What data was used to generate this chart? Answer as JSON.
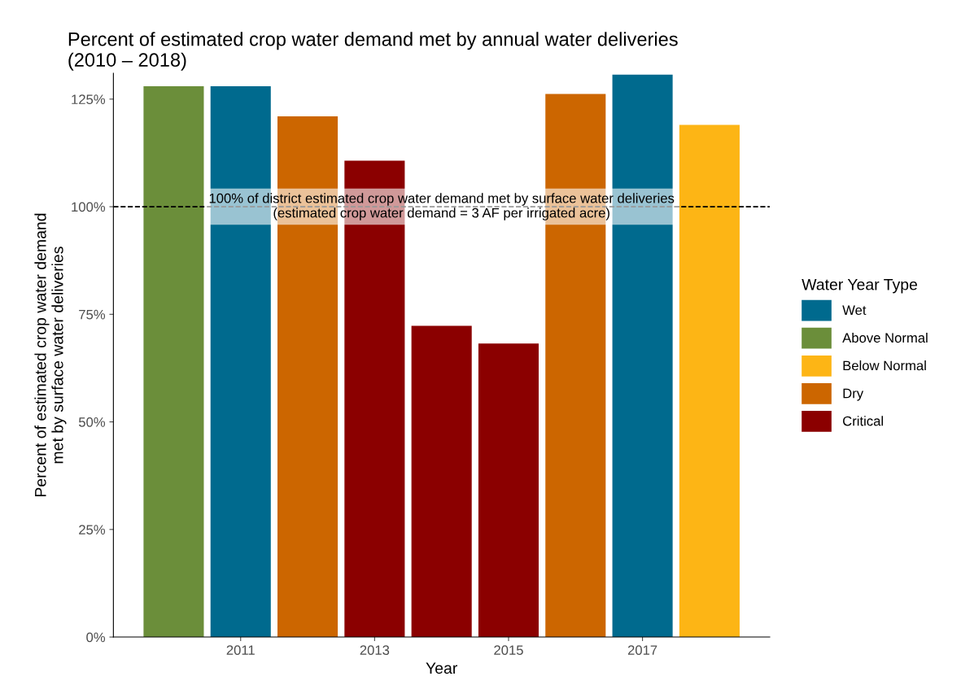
{
  "chart_data": {
    "type": "bar",
    "title": "Percent of estimated crop water demand met by annual water deliveries\n(2010 – 2018)",
    "xlabel": "Year",
    "ylabel": "Percent of estimated crop water demand\nmet by surface water deliveries",
    "legend_title": "Water Year Type",
    "x": [
      2010,
      2011,
      2012,
      2013,
      2014,
      2015,
      2016,
      2017,
      2018
    ],
    "series": [
      {
        "name": "Wet",
        "color": "#006a8e",
        "values": [
          null,
          128,
          null,
          null,
          null,
          null,
          null,
          130.7,
          null
        ]
      },
      {
        "name": "Above Normal",
        "color": "#6b8e3a",
        "values": [
          128,
          null,
          null,
          null,
          null,
          null,
          null,
          null,
          null
        ]
      },
      {
        "name": "Below Normal",
        "color": "#fdb515",
        "values": [
          null,
          null,
          null,
          null,
          null,
          null,
          null,
          null,
          119
        ]
      },
      {
        "name": "Dry",
        "color": "#cc6600",
        "values": [
          null,
          null,
          121,
          null,
          null,
          null,
          126.2,
          null,
          null
        ]
      },
      {
        "name": "Critical",
        "color": "#8b0000",
        "values": [
          null,
          null,
          null,
          110.7,
          72.3,
          68.2,
          null,
          null,
          null
        ]
      }
    ],
    "xlim": [
      2009.1,
      2018.9
    ],
    "xticks": [
      2011,
      2013,
      2015,
      2017
    ],
    "ylim": [
      0,
      131
    ],
    "yticks": [
      {
        "value": 0,
        "label": "0%"
      },
      {
        "value": 25,
        "label": "25%"
      },
      {
        "value": 50,
        "label": "50%"
      },
      {
        "value": 75,
        "label": "75%"
      },
      {
        "value": 100,
        "label": "100%"
      },
      {
        "value": 125,
        "label": "125%"
      }
    ],
    "ref_lines": [
      {
        "axis": "y",
        "value": 100,
        "line_style": "dashed",
        "color": "#000000",
        "label": "100% of district estimated crop water demand met by surface water deliveries\n(estimated crop water demand = 3 AF per irrigated acre)"
      }
    ],
    "grid": false,
    "legend": "right"
  }
}
